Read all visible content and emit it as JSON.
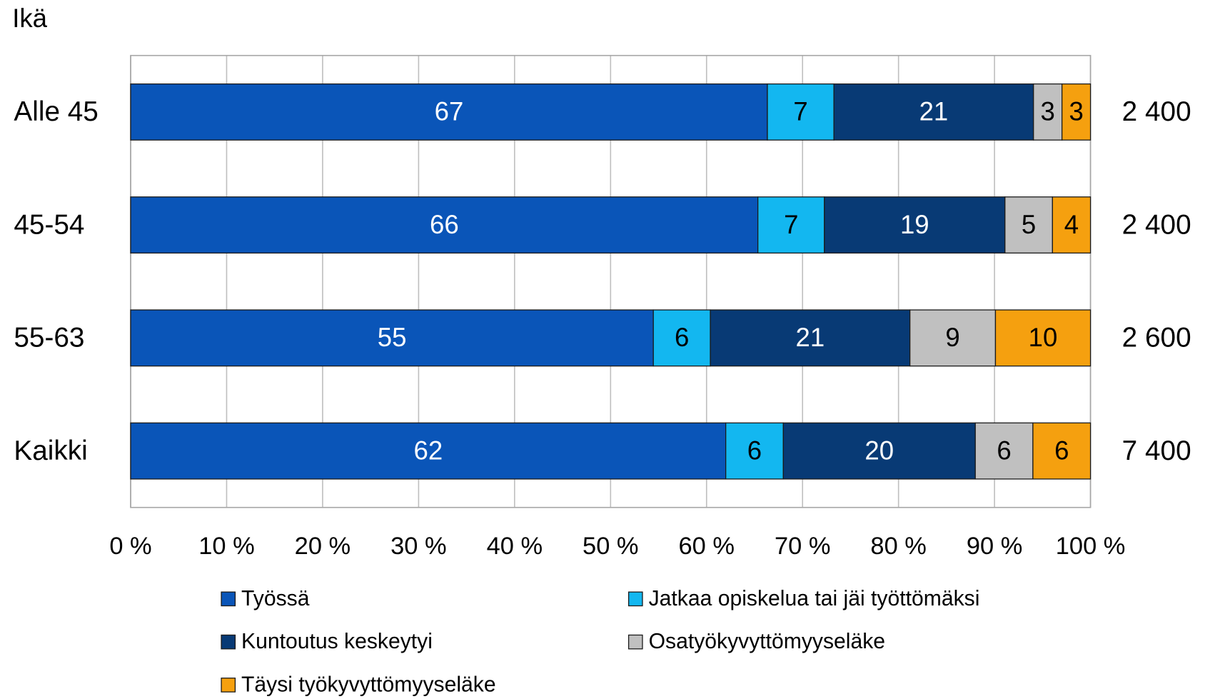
{
  "chart_data": {
    "type": "bar",
    "orientation": "horizontal",
    "stacked": "percent",
    "ylabel": "Ikä",
    "categories": [
      "Alle 45",
      "45-54",
      "55-63",
      "Kaikki"
    ],
    "series": [
      {
        "name": "Työssä",
        "color": "#0a55b8",
        "label_color": "#ffffff",
        "values": [
          67,
          66,
          55,
          62
        ]
      },
      {
        "name": "Jatkaa opiskelua tai jäi työttömäksi",
        "color": "#13b7f0",
        "label_color": "#000000",
        "values": [
          7,
          7,
          6,
          6
        ]
      },
      {
        "name": "Kuntoutus keskeytyi",
        "color": "#083a75",
        "label_color": "#ffffff",
        "values": [
          21,
          19,
          21,
          20
        ]
      },
      {
        "name": "Osatyökyvyttömyyseläke",
        "color": "#c0c0c0",
        "label_color": "#000000",
        "values": [
          3,
          5,
          9,
          6
        ]
      },
      {
        "name": "Täysi työkyvyttömyyseläke",
        "color": "#f5a00f",
        "label_color": "#000000",
        "values": [
          3,
          4,
          10,
          6
        ]
      }
    ],
    "totals": [
      {
        "value": 2400,
        "label": "2 400"
      },
      {
        "value": 2400,
        "label": "2 400"
      },
      {
        "value": 2600,
        "label": "2 600"
      },
      {
        "value": 7400,
        "label": "7 400"
      }
    ],
    "xlim": [
      0,
      100
    ],
    "xticks": [
      {
        "value": 0,
        "label": "0 %"
      },
      {
        "value": 10,
        "label": "10 %"
      },
      {
        "value": 20,
        "label": "20 %"
      },
      {
        "value": 30,
        "label": "30 %"
      },
      {
        "value": 40,
        "label": "40 %"
      },
      {
        "value": 50,
        "label": "50 %"
      },
      {
        "value": 60,
        "label": "60 %"
      },
      {
        "value": 70,
        "label": "70 %"
      },
      {
        "value": 80,
        "label": "80 %"
      },
      {
        "value": 90,
        "label": "90 %"
      },
      {
        "value": 100,
        "label": "100 %"
      }
    ],
    "grid": true,
    "legend": "bottom"
  }
}
